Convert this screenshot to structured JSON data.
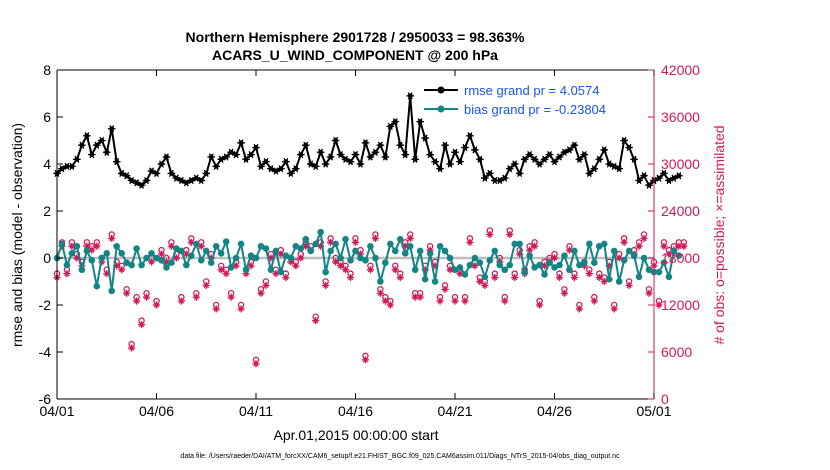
{
  "chart_data": {
    "type": "line",
    "title": "Northern Hemisphere 2901728 / 2950033 = 98.363%",
    "subtitle": "ACARS_U_WIND_COMPONENT @ 200 hPa",
    "xlabel": "Apr.01,2015 00:00:00 start",
    "ylabel_left": "rmse and bias (model - observation)",
    "ylabel_right": "# of obs: o=possible; ×=assimilated",
    "xlim": [
      0,
      30
    ],
    "ylim_left": [
      -6,
      8
    ],
    "ylim_right": [
      0,
      42000
    ],
    "x_tick_positions": [
      0,
      5,
      10,
      15,
      20,
      25,
      30
    ],
    "x_tick_labels": [
      "04/01",
      "04/06",
      "04/11",
      "04/16",
      "04/21",
      "04/26",
      "05/01"
    ],
    "y_left_ticks": [
      "-6",
      "-4",
      "-2",
      "0",
      "2",
      "4",
      "6",
      "8"
    ],
    "y_left_tick_values": [
      -6,
      -4,
      -2,
      0,
      2,
      4,
      6,
      8
    ],
    "y_right_ticks": [
      "0",
      "6000",
      "12000",
      "18000",
      "24000",
      "30000",
      "36000",
      "42000"
    ],
    "y_right_tick_values": [
      0,
      6000,
      12000,
      18000,
      24000,
      30000,
      36000,
      42000
    ],
    "time_step_days": 0.25,
    "legend": [
      {
        "label": "rmse grand pr = 4.0574",
        "color": "#000000"
      },
      {
        "label": "bias grand pr = -0.23804",
        "color": "#138585"
      }
    ],
    "series": [
      {
        "name": "rmse",
        "color": "#000000",
        "marker": "star",
        "values": [
          3.6,
          3.8,
          3.9,
          3.9,
          4.2,
          4.8,
          5.2,
          4.4,
          4.8,
          5.0,
          4.5,
          5.5,
          4.1,
          3.6,
          3.5,
          3.3,
          3.2,
          3.1,
          3.3,
          3.7,
          3.6,
          4.0,
          4.3,
          3.6,
          3.4,
          3.3,
          3.2,
          3.3,
          3.4,
          3.3,
          3.6,
          4.3,
          3.9,
          4.2,
          4.3,
          4.5,
          4.4,
          4.9,
          4.2,
          4.4,
          4.7,
          3.9,
          4.1,
          3.8,
          3.7,
          3.8,
          4.1,
          3.6,
          3.8,
          4.4,
          4.8,
          4.0,
          3.9,
          4.5,
          4.0,
          4.3,
          5.0,
          4.4,
          4.2,
          4.1,
          4.4,
          4.0,
          4.9,
          4.3,
          4.5,
          4.8,
          4.3,
          5.6,
          5.8,
          4.8,
          4.4,
          6.9,
          4.2,
          5.8,
          5.1,
          4.4,
          4.1,
          3.8,
          4.8,
          4.0,
          4.5,
          4.1,
          4.7,
          5.2,
          4.6,
          4.2,
          3.4,
          3.6,
          3.3,
          3.3,
          3.4,
          3.8,
          4.0,
          3.6,
          4.2,
          4.4,
          4.2,
          4.0,
          4.2,
          4.4,
          4.1,
          4.3,
          4.5,
          4.6,
          4.8,
          4.2,
          4.4,
          3.6,
          3.8,
          4.2,
          4.6,
          4.0,
          3.9,
          3.8,
          5.0,
          4.7,
          4.2,
          3.3,
          3.5,
          3.1,
          3.3,
          3.4,
          3.6,
          3.3,
          3.4,
          3.5
        ]
      },
      {
        "name": "bias",
        "color": "#138585",
        "marker": "dot",
        "values": [
          0.0,
          0.6,
          -0.3,
          0.2,
          0.5,
          -0.5,
          0.3,
          -0.1,
          -1.2,
          0.0,
          0.2,
          -1.4,
          0.5,
          0.2,
          -0.2,
          -0.3,
          0.4,
          -0.3,
          0.0,
          0.2,
          0.0,
          -0.1,
          -0.4,
          -0.2,
          0.4,
          0.3,
          -0.3,
          0.1,
          0.6,
          -0.1,
          0.3,
          -0.2,
          0.5,
          0.2,
          0.7,
          -0.4,
          0.0,
          0.6,
          -0.5,
          0.1,
          0.0,
          0.5,
          0.4,
          -0.5,
          0.3,
          -0.6,
          0.1,
          0.0,
          0.5,
          0.4,
          0.8,
          0.3,
          0.6,
          1.1,
          -0.6,
          0.3,
          0.6,
          0.0,
          0.8,
          -0.1,
          0.3,
          0.0,
          -0.1,
          0.5,
          0.0,
          -1.0,
          -0.2,
          0.6,
          0.3,
          0.8,
          0.2,
          0.5,
          -0.5,
          0.3,
          -0.9,
          0.2,
          -1.0,
          0.5,
          0.3,
          0.0,
          -0.5,
          -0.4,
          -0.7,
          -0.3,
          0.0,
          -0.2,
          -0.8,
          -0.1,
          0.3,
          -0.3,
          -0.5,
          -0.3,
          0.6,
          0.6,
          -0.6,
          0.1,
          -0.4,
          -0.3,
          -0.7,
          -0.2,
          -0.4,
          -0.3,
          0.1,
          -0.5,
          0.3,
          -0.3,
          -0.2,
          0.6,
          -0.2,
          0.5,
          0.6,
          -0.9,
          0.3,
          -1.0,
          -0.1,
          0.3,
          0.1,
          -0.8,
          0.0,
          -0.5,
          -0.6,
          -0.6,
          -0.2,
          -0.8,
          0.3,
          0.1
        ]
      },
      {
        "name": "obs possible",
        "color": "#d01a58",
        "marker": "circle",
        "axis": "right",
        "values": [
          16000,
          20000,
          16500,
          20000,
          18500,
          17500,
          20000,
          19500,
          20000,
          18000,
          16500,
          21000,
          17500,
          17000,
          14000,
          7000,
          13000,
          10000,
          13500,
          18000,
          12500,
          19000,
          18000,
          20000,
          18500,
          13000,
          19000,
          20500,
          13500,
          20000,
          15000,
          18500,
          12000,
          17000,
          16500,
          13500,
          17500,
          12000,
          16500,
          17500,
          5000,
          14000,
          15000,
          18500,
          16500,
          19000,
          16000,
          18000,
          17500,
          18500,
          20000,
          19500,
          10500,
          20000,
          15000,
          20500,
          18000,
          17500,
          17000,
          16000,
          20500,
          19000,
          5500,
          17000,
          21000,
          14000,
          13000,
          12500,
          17000,
          16000,
          20000,
          21000,
          13500,
          13500,
          17000,
          19500,
          17500,
          13000,
          14500,
          17000,
          13000,
          16500,
          13000,
          20500,
          17500,
          15500,
          15000,
          21500,
          16000,
          18000,
          13000,
          21500,
          16000,
          19000,
          16500,
          19500,
          20000,
          12500,
          17500,
          18000,
          18500,
          16000,
          14000,
          19500,
          16000,
          12000,
          17500,
          16500,
          13000,
          16000,
          15500,
          17500,
          12000,
          18500,
          20500,
          15000,
          19000,
          20000,
          21000,
          14000,
          17500,
          12500,
          20000,
          19000,
          19500,
          20000,
          20000
        ]
      },
      {
        "name": "obs assimilated",
        "color": "#d01a58",
        "marker": "x",
        "axis": "right",
        "values": [
          15500,
          19500,
          16000,
          19500,
          18000,
          17000,
          19500,
          19000,
          19500,
          17500,
          16000,
          20500,
          17000,
          16500,
          13500,
          6500,
          12500,
          9500,
          13000,
          17500,
          12000,
          18500,
          17500,
          19500,
          18000,
          12500,
          18500,
          20000,
          13000,
          19500,
          14500,
          18000,
          11500,
          16500,
          16000,
          13000,
          17000,
          11500,
          16000,
          17000,
          4500,
          13500,
          14500,
          18000,
          16000,
          18500,
          15500,
          17500,
          17000,
          18000,
          19500,
          19000,
          10000,
          19500,
          14500,
          20000,
          17500,
          17000,
          16500,
          15500,
          20000,
          18500,
          5000,
          16500,
          20500,
          13500,
          12500,
          12000,
          16500,
          15500,
          19500,
          20500,
          13000,
          13000,
          16500,
          19000,
          17000,
          12500,
          14000,
          16500,
          12500,
          16000,
          12500,
          20000,
          17000,
          15000,
          14500,
          21000,
          15500,
          17500,
          12500,
          21000,
          15500,
          18500,
          16000,
          19000,
          19500,
          12000,
          17000,
          17500,
          18000,
          15500,
          13500,
          19000,
          15500,
          11500,
          17000,
          16000,
          12500,
          15500,
          15000,
          17000,
          11500,
          18000,
          20000,
          14500,
          18500,
          19500,
          20500,
          13500,
          17000,
          12000,
          19500,
          18500,
          19000,
          19500,
          19500
        ]
      }
    ]
  },
  "footer": {
    "text": "data file: /Users/raeder/DAI/ATM_forcXX/CAM6_setup/f.e21.FHIST_BGC.f09_025.CAM6assim.011/Diags_NTrS_2015-04/obs_diag_output.nc"
  }
}
